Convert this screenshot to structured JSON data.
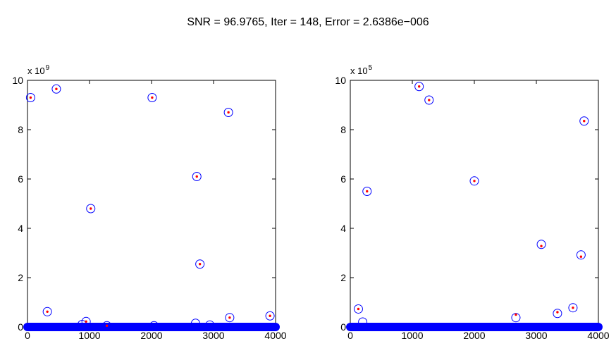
{
  "figure_title": "SNR = 96.9765, Iter = 148, Error = 2.6386e−006",
  "chart_data": [
    {
      "type": "scatter",
      "exponent_label": "x 10",
      "exponent_power": "9",
      "xlim": [
        0,
        4000
      ],
      "ylim": [
        0,
        10
      ],
      "x_ticks": [
        0,
        1000,
        2000,
        3000,
        4000
      ],
      "y_ticks": [
        0,
        2,
        4,
        6,
        8,
        10
      ],
      "x_tick_labels": [
        "0",
        "1000",
        "2000",
        "3000",
        "4000"
      ],
      "y_tick_labels": [
        "0",
        "2",
        "4",
        "6",
        "8",
        "10"
      ],
      "zero_band": [
        0,
        4000
      ],
      "series": [
        {
          "marker": "circle-open",
          "color": "#0000ff",
          "points": [
            [
              50,
              9.3
            ],
            [
              465,
              9.65
            ],
            [
              1020,
              4.8
            ],
            [
              2010,
              9.3
            ],
            [
              2730,
              6.1
            ],
            [
              2780,
              2.55
            ],
            [
              3240,
              8.7
            ],
            [
              320,
              0.62
            ],
            [
              945,
              0.22
            ],
            [
              880,
              0.1
            ],
            [
              1280,
              0.05
            ],
            [
              2040,
              0.05
            ],
            [
              2710,
              0.15
            ],
            [
              2940,
              0.08
            ],
            [
              3260,
              0.38
            ],
            [
              3910,
              0.45
            ]
          ]
        },
        {
          "marker": "dot",
          "color": "#ff0000",
          "points": [
            [
              50,
              9.3
            ],
            [
              465,
              9.65
            ],
            [
              1020,
              4.8
            ],
            [
              2010,
              9.3
            ],
            [
              2730,
              6.1
            ],
            [
              2780,
              2.55
            ],
            [
              3240,
              8.7
            ],
            [
              320,
              0.62
            ],
            [
              945,
              0.22
            ],
            [
              1280,
              0.05
            ],
            [
              3260,
              0.38
            ],
            [
              3910,
              0.45
            ]
          ]
        }
      ]
    },
    {
      "type": "scatter",
      "exponent_label": "x 10",
      "exponent_power": "5",
      "xlim": [
        0,
        4000
      ],
      "ylim": [
        0,
        10
      ],
      "x_ticks": [
        0,
        1000,
        2000,
        3000,
        4000
      ],
      "y_ticks": [
        0,
        2,
        4,
        6,
        8,
        10
      ],
      "x_tick_labels": [
        "0",
        "1000",
        "2000",
        "3000",
        "4000"
      ],
      "y_tick_labels": [
        "0",
        "2",
        "4",
        "6",
        "8",
        "10"
      ],
      "zero_band": [
        0,
        4000
      ],
      "series": [
        {
          "marker": "circle-open",
          "color": "#0000ff",
          "points": [
            [
              1110,
              9.75
            ],
            [
              1270,
              9.2
            ],
            [
              3770,
              8.35
            ],
            [
              270,
              5.5
            ],
            [
              2000,
              5.92
            ],
            [
              3080,
              3.35
            ],
            [
              3720,
              2.92
            ],
            [
              130,
              0.73
            ],
            [
              200,
              0.2
            ],
            [
              2670,
              0.38
            ],
            [
              3340,
              0.55
            ],
            [
              3590,
              0.78
            ]
          ]
        },
        {
          "marker": "dot",
          "color": "#ff0000",
          "points": [
            [
              1110,
              9.75
            ],
            [
              1270,
              9.2
            ],
            [
              3770,
              8.35
            ],
            [
              270,
              5.5
            ],
            [
              2000,
              5.92
            ],
            [
              3080,
              3.28
            ],
            [
              3720,
              2.85
            ],
            [
              130,
              0.73
            ],
            [
              2670,
              0.5
            ],
            [
              3340,
              0.6
            ],
            [
              3590,
              0.78
            ]
          ]
        }
      ]
    }
  ]
}
